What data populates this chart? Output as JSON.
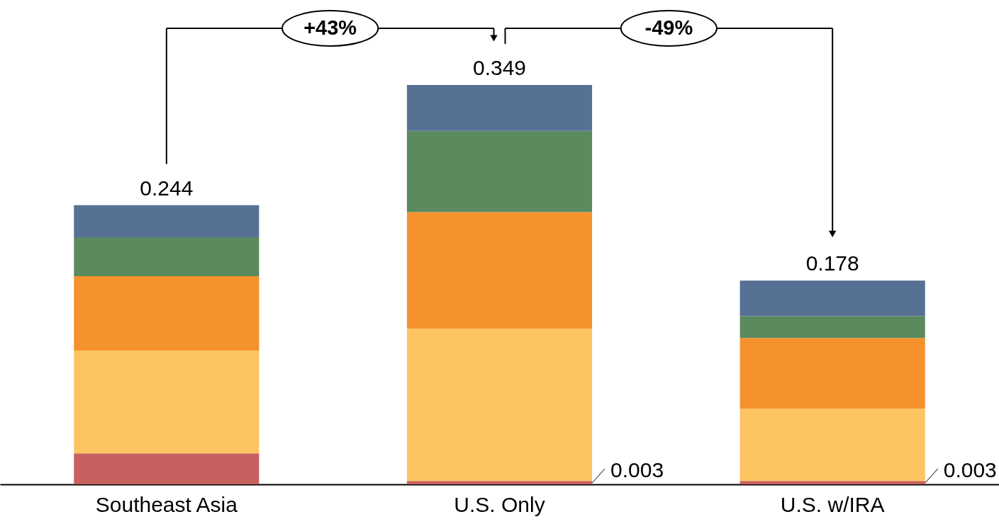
{
  "chart_data": {
    "type": "bar",
    "stacked": true,
    "categories": [
      "Southeast Asia",
      "U.S. Only",
      "U.S. w/IRA"
    ],
    "series": [
      {
        "color": "#c8605f",
        "values": [
          0.027,
          0.003,
          0.003
        ],
        "value_labels": [
          null,
          "0.003",
          "0.003"
        ]
      },
      {
        "color": "#fdc461",
        "values": [
          0.09,
          0.133,
          0.063
        ]
      },
      {
        "color": "#f5922d",
        "values": [
          0.065,
          0.102,
          0.062
        ]
      },
      {
        "color": "#5a8a5e",
        "values": [
          0.034,
          0.071,
          0.019
        ]
      },
      {
        "color": "#577195",
        "values": [
          0.028,
          0.04,
          0.031
        ]
      }
    ],
    "totals": [
      "0.244",
      "0.349",
      "0.178"
    ],
    "annotations": [
      "+43%",
      "-49%"
    ],
    "legend": false,
    "grid": false
  }
}
